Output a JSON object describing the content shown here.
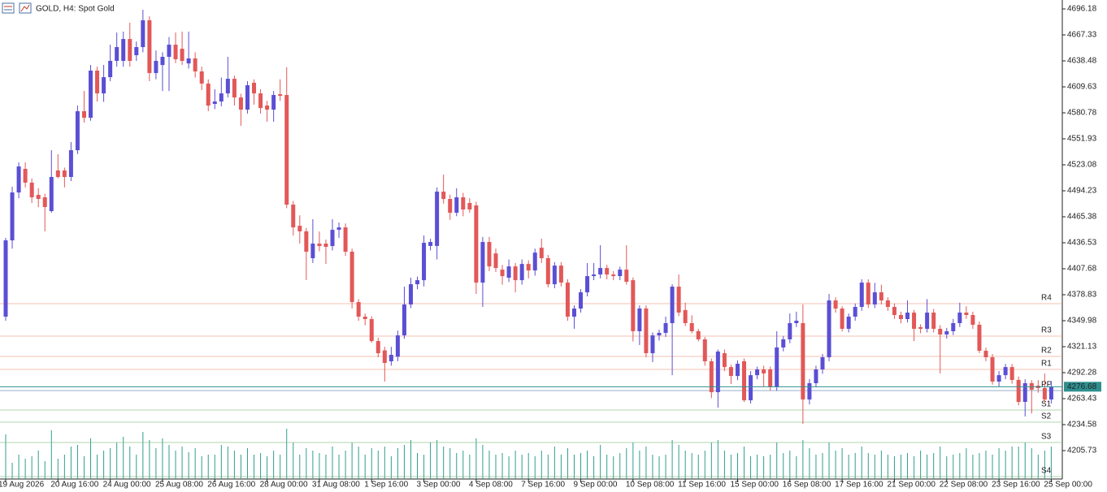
{
  "chart_data": {
    "type": "candlestick",
    "title": "GOLD, H4:  Spot Gold",
    "ylim": [
      4174.2,
      4706.1
    ],
    "yticks": [
      4696.18,
      4667.33,
      4638.48,
      4609.63,
      4580.78,
      4551.93,
      4523.08,
      4494.23,
      4465.38,
      4436.53,
      4407.68,
      4378.83,
      4349.98,
      4321.13,
      4292.28,
      4263.43,
      4234.58,
      4205.73
    ],
    "bull_color": "#5a4fd4",
    "bear_color": "#e25858",
    "volume_color": "#2f9e8f",
    "last_price": 4276.68,
    "last_price_color": "#2f8f8f",
    "levels": [
      {
        "name": "R4",
        "value": 4368.9,
        "color": "#ee9a7e"
      },
      {
        "name": "R3",
        "value": 4332.9,
        "color": "#ee9a7e"
      },
      {
        "name": "R2",
        "value": 4310.3,
        "color": "#ee9a7e"
      },
      {
        "name": "R1",
        "value": 4295.9,
        "color": "#ee9a7e"
      },
      {
        "name": "PP",
        "value": 4272.4,
        "color": "#6a8fb8"
      },
      {
        "name": "S1",
        "value": 4250.8,
        "color": "#7fb87f"
      },
      {
        "name": "S2",
        "value": 4237.3,
        "color": "#7fb87f"
      },
      {
        "name": "S3",
        "value": 4214.8,
        "color": "#7fb87f"
      },
      {
        "name": "S4",
        "value": 4176.9,
        "color": "#7fb87f"
      }
    ],
    "categories": [
      "19 Aug 2026",
      null,
      null,
      null,
      null,
      null,
      null,
      null,
      "20 Aug 16:00",
      null,
      null,
      null,
      null,
      null,
      null,
      null,
      "24 Aug 00:00",
      null,
      null,
      null,
      null,
      null,
      null,
      null,
      "25 Aug 08:00",
      null,
      null,
      null,
      null,
      null,
      null,
      null,
      "26 Aug 16:00",
      null,
      null,
      null,
      null,
      null,
      null,
      null,
      "28 Aug 00:00",
      null,
      null,
      null,
      null,
      null,
      null,
      null,
      "31 Aug 08:00",
      null,
      null,
      null,
      null,
      null,
      null,
      null,
      "1 Sep 16:00",
      null,
      null,
      null,
      null,
      null,
      null,
      null,
      "3 Sep 00:00",
      null,
      null,
      null,
      null,
      null,
      null,
      null,
      "4 Sep 08:00",
      null,
      null,
      null,
      null,
      null,
      null,
      null,
      "7 Sep 16:00",
      null,
      null,
      null,
      null,
      null,
      null,
      null,
      "9 Sep 00:00",
      null,
      null,
      null,
      null,
      null,
      null,
      null,
      "10 Sep 08:00",
      null,
      null,
      null,
      null,
      null,
      null,
      null,
      "11 Sep 16:00",
      null,
      null,
      null,
      null,
      null,
      null,
      null,
      "15 Sep 00:00",
      null,
      null,
      null,
      null,
      null,
      null,
      null,
      "16 Sep 08:00",
      null,
      null,
      null,
      null,
      null,
      null,
      null,
      "17 Sep 16:00",
      null,
      null,
      null,
      null,
      null,
      null,
      null,
      "21 Sep 00:00",
      null,
      null,
      null,
      null,
      null,
      null,
      null,
      "22 Sep 08:00",
      null,
      null,
      null,
      null,
      null,
      null,
      null,
      "23 Sep 16:00",
      null,
      null,
      null,
      null,
      null,
      null,
      null,
      "25 Sep 00:00"
    ],
    "candles": [
      [
        4354.5,
        4442.0,
        4350.0,
        4439.2
      ],
      [
        4439.2,
        4498.7,
        4430.0,
        4492.4
      ],
      [
        4492.4,
        4525.8,
        4486.0,
        4521.3
      ],
      [
        4518.6,
        4525.8,
        4498.0,
        4503.3
      ],
      [
        4503.3,
        4508.0,
        4480.7,
        4487.0
      ],
      [
        4489.7,
        4497.0,
        4476.0,
        4485.2
      ],
      [
        4487.0,
        4491.0,
        4449.2,
        4476.2
      ],
      [
        4471.7,
        4539.3,
        4469.9,
        4509.6
      ],
      [
        4516.8,
        4534.8,
        4508.0,
        4509.6
      ],
      [
        4516.8,
        4520.0,
        4498.0,
        4509.6
      ],
      [
        4509.6,
        4548.3,
        4505.0,
        4539.3
      ],
      [
        4539.3,
        4588.9,
        4535.0,
        4582.6
      ],
      [
        4582.6,
        4605.1,
        4570.0,
        4575.4
      ],
      [
        4575.4,
        4634.0,
        4572.0,
        4627.7
      ],
      [
        4627.7,
        4632.0,
        4593.4,
        4602.4
      ],
      [
        4602.4,
        4634.0,
        4593.0,
        4620.4
      ],
      [
        4620.4,
        4656.5,
        4616.0,
        4638.5
      ],
      [
        4638.5,
        4670.0,
        4632.0,
        4653.8
      ],
      [
        4638.5,
        4671.0,
        4632.0,
        4662.8
      ],
      [
        4662.8,
        4680.9,
        4632.0,
        4638.5
      ],
      [
        4644.8,
        4660.0,
        4638.5,
        4653.8
      ],
      [
        4653.8,
        4695.3,
        4648.0,
        4683.6
      ],
      [
        4683.6,
        4688.0,
        4616.0,
        4625.0
      ],
      [
        4625.0,
        4650.0,
        4618.0,
        4638.5
      ],
      [
        4633.9,
        4648.0,
        4605.0,
        4643.0
      ],
      [
        4643.0,
        4665.0,
        4605.0,
        4656.5
      ],
      [
        4656.5,
        4670.0,
        4636.0,
        4640.3
      ],
      [
        4652.0,
        4671.0,
        4634.0,
        4638.5
      ],
      [
        4635.7,
        4671.0,
        4630.0,
        4641.2
      ],
      [
        4641.2,
        4648.0,
        4620.0,
        4626.8
      ],
      [
        4626.8,
        4632.0,
        4606.0,
        4613.3
      ],
      [
        4613.3,
        4618.0,
        4582.6,
        4588.9
      ],
      [
        4590.7,
        4607.0,
        4585.0,
        4593.4
      ],
      [
        4593.4,
        4620.0,
        4588.0,
        4602.4
      ],
      [
        4602.4,
        4643.0,
        4598.0,
        4618.6
      ],
      [
        4618.6,
        4622.0,
        4588.9,
        4597.9
      ],
      [
        4597.9,
        4602.0,
        4566.4,
        4584.4
      ],
      [
        4584.4,
        4616.0,
        4580.0,
        4611.5
      ],
      [
        4614.2,
        4618.0,
        4590.0,
        4602.4
      ],
      [
        4602.4,
        4607.0,
        4579.9,
        4586.2
      ],
      [
        4588.9,
        4594.0,
        4570.9,
        4584.4
      ],
      [
        4584.4,
        4605.1,
        4570.9,
        4600.6
      ],
      [
        4601.5,
        4618.0,
        4594.0,
        4599.7
      ],
      [
        4600.6,
        4631.3,
        4475.0,
        4478.9
      ],
      [
        4478.9,
        4483.0,
        4444.6,
        4453.6
      ],
      [
        4455.4,
        4467.0,
        4435.6,
        4449.2
      ],
      [
        4449.2,
        4453.0,
        4395.1,
        4426.6
      ],
      [
        4419.4,
        4462.7,
        4414.0,
        4435.6
      ],
      [
        4435.6,
        4449.0,
        4427.0,
        4432.9
      ],
      [
        4435.6,
        4440.0,
        4413.0,
        4432.0
      ],
      [
        4432.9,
        4462.7,
        4428.0,
        4450.9
      ],
      [
        4450.9,
        4459.0,
        4442.0,
        4453.6
      ],
      [
        4453.6,
        4458.0,
        4422.0,
        4426.6
      ],
      [
        4426.6,
        4430.0,
        4363.5,
        4370.7
      ],
      [
        4370.7,
        4374.0,
        4349.9,
        4354.5
      ],
      [
        4354.5,
        4358.0,
        4345.0,
        4351.8
      ],
      [
        4351.8,
        4355.0,
        4325.6,
        4327.4
      ],
      [
        4327.4,
        4331.0,
        4309.4,
        4313.9
      ],
      [
        4317.0,
        4321.0,
        4282.4,
        4303.1
      ],
      [
        4304.9,
        4321.0,
        4300.0,
        4312.1
      ],
      [
        4310.0,
        4339.0,
        4305.0,
        4333.7
      ],
      [
        4333.7,
        4387.8,
        4330.0,
        4368.0
      ],
      [
        4368.0,
        4397.7,
        4364.0,
        4390.5
      ],
      [
        4390.5,
        4399.0,
        4385.0,
        4395.0
      ],
      [
        4395.0,
        4444.6,
        4388.0,
        4436.5
      ],
      [
        4433.0,
        4441.0,
        4428.0,
        4437.4
      ],
      [
        4433.0,
        4498.0,
        4418.0,
        4493.3
      ],
      [
        4493.3,
        4512.3,
        4480.0,
        4485.2
      ],
      [
        4485.2,
        4490.0,
        4462.0,
        4469.9
      ],
      [
        4469.9,
        4497.0,
        4466.0,
        4487.0
      ],
      [
        4487.0,
        4492.0,
        4466.0,
        4473.5
      ],
      [
        4480.7,
        4486.0,
        4470.0,
        4473.5
      ],
      [
        4478.0,
        4482.0,
        4379.7,
        4392.3
      ],
      [
        4392.3,
        4443.0,
        4365.3,
        4437.4
      ],
      [
        4437.4,
        4443.0,
        4405.0,
        4410.3
      ],
      [
        4424.7,
        4430.0,
        4404.0,
        4408.5
      ],
      [
        4406.7,
        4412.0,
        4390.0,
        4399.5
      ],
      [
        4397.7,
        4418.0,
        4393.0,
        4410.3
      ],
      [
        4410.3,
        4414.0,
        4381.5,
        4395.0
      ],
      [
        4395.0,
        4418.0,
        4390.0,
        4413.0
      ],
      [
        4413.0,
        4417.0,
        4397.0,
        4405.8
      ],
      [
        4405.8,
        4430.0,
        4400.0,
        4425.6
      ],
      [
        4431.0,
        4441.0,
        4414.0,
        4419.4
      ],
      [
        4419.4,
        4423.0,
        4387.0,
        4390.5
      ],
      [
        4390.5,
        4415.0,
        4386.0,
        4411.2
      ],
      [
        4411.2,
        4415.0,
        4388.0,
        4392.3
      ],
      [
        4392.3,
        4396.0,
        4349.9,
        4354.5
      ],
      [
        4354.5,
        4367.0,
        4341.0,
        4363.5
      ],
      [
        4363.5,
        4385.0,
        4359.0,
        4381.5
      ],
      [
        4381.5,
        4414.0,
        4377.0,
        4399.5
      ],
      [
        4399.5,
        4414.0,
        4395.0,
        4401.3
      ],
      [
        4401.3,
        4433.8,
        4397.0,
        4408.5
      ],
      [
        4408.5,
        4412.0,
        4396.0,
        4401.3
      ],
      [
        4401.3,
        4405.0,
        4395.0,
        4399.5
      ],
      [
        4399.5,
        4410.0,
        4395.0,
        4406.7
      ],
      [
        4406.7,
        4433.8,
        4390.0,
        4393.2
      ],
      [
        4395.0,
        4398.0,
        4327.0,
        4338.3
      ],
      [
        4338.3,
        4367.0,
        4323.0,
        4363.5
      ],
      [
        4363.5,
        4367.0,
        4309.4,
        4313.9
      ],
      [
        4313.9,
        4337.0,
        4304.0,
        4333.7
      ],
      [
        4333.7,
        4340.0,
        4328.0,
        4336.5
      ],
      [
        4336.5,
        4354.5,
        4332.0,
        4347.3
      ],
      [
        4347.3,
        4390.5,
        4289.5,
        4387.8
      ],
      [
        4387.8,
        4401.3,
        4355.0,
        4359.0
      ],
      [
        4361.8,
        4370.0,
        4344.0,
        4347.3
      ],
      [
        4347.3,
        4356.0,
        4336.0,
        4338.3
      ],
      [
        4338.3,
        4341.0,
        4327.0,
        4329.3
      ],
      [
        4329.3,
        4332.0,
        4300.0,
        4304.9
      ],
      [
        4304.9,
        4308.0,
        4264.0,
        4270.6
      ],
      [
        4270.6,
        4318.0,
        4253.5,
        4315.7
      ],
      [
        4313.9,
        4318.0,
        4294.0,
        4298.5
      ],
      [
        4298.5,
        4301.0,
        4279.6,
        4288.6
      ],
      [
        4288.6,
        4306.0,
        4284.0,
        4302.2
      ],
      [
        4304.9,
        4308.0,
        4259.8,
        4261.6
      ],
      [
        4261.6,
        4294.0,
        4258.0,
        4289.5
      ],
      [
        4289.5,
        4299.0,
        4285.0,
        4295.9
      ],
      [
        4295.9,
        4300.0,
        4277.0,
        4291.4
      ],
      [
        4295.9,
        4299.0,
        4272.0,
        4276.1
      ],
      [
        4276.1,
        4338.3,
        4272.0,
        4320.3
      ],
      [
        4320.3,
        4333.0,
        4316.0,
        4329.3
      ],
      [
        4329.3,
        4358.0,
        4325.0,
        4347.3
      ],
      [
        4347.3,
        4360.0,
        4343.0,
        4350.0
      ],
      [
        4347.3,
        4368.0,
        4235.5,
        4262.5
      ],
      [
        4262.5,
        4285.0,
        4257.0,
        4280.6
      ],
      [
        4280.6,
        4300.0,
        4276.0,
        4295.9
      ],
      [
        4295.9,
        4313.0,
        4291.0,
        4309.4
      ],
      [
        4309.4,
        4379.7,
        4305.0,
        4372.5
      ],
      [
        4372.5,
        4376.0,
        4359.0,
        4363.5
      ],
      [
        4363.5,
        4366.0,
        4338.0,
        4341.0
      ],
      [
        4341.0,
        4358.0,
        4337.0,
        4354.5
      ],
      [
        4354.5,
        4369.0,
        4350.0,
        4365.3
      ],
      [
        4365.3,
        4396.0,
        4361.0,
        4392.3
      ],
      [
        4392.3,
        4396.0,
        4364.0,
        4368.0
      ],
      [
        4368.0,
        4392.0,
        4364.0,
        4381.5
      ],
      [
        4381.5,
        4390.0,
        4368.0,
        4372.5
      ],
      [
        4372.5,
        4376.0,
        4361.0,
        4365.3
      ],
      [
        4365.3,
        4369.0,
        4352.0,
        4356.3
      ],
      [
        4356.3,
        4360.0,
        4347.0,
        4351.8
      ],
      [
        4351.8,
        4372.5,
        4348.0,
        4359.0
      ],
      [
        4359.0,
        4362.0,
        4327.4,
        4341.0
      ],
      [
        4342.8,
        4346.0,
        4336.0,
        4341.0
      ],
      [
        4341.0,
        4374.0,
        4337.0,
        4359.0
      ],
      [
        4359.0,
        4363.0,
        4337.0,
        4341.0
      ],
      [
        4341.0,
        4345.0,
        4291.4,
        4334.7
      ],
      [
        4334.7,
        4342.0,
        4330.0,
        4338.3
      ],
      [
        4338.3,
        4352.0,
        4334.0,
        4347.3
      ],
      [
        4347.3,
        4370.0,
        4343.0,
        4359.0
      ],
      [
        4359.0,
        4366.0,
        4352.0,
        4356.3
      ],
      [
        4356.3,
        4360.0,
        4341.0,
        4345.5
      ],
      [
        4345.5,
        4349.0,
        4313.9,
        4316.6
      ],
      [
        4316.6,
        4320.0,
        4305.0,
        4309.4
      ],
      [
        4309.4,
        4313.0,
        4279.0,
        4282.4
      ],
      [
        4282.4,
        4294.0,
        4277.0,
        4289.5
      ],
      [
        4289.5,
        4302.0,
        4285.0,
        4298.5
      ],
      [
        4298.5,
        4302.0,
        4280.0,
        4284.2
      ],
      [
        4284.2,
        4288.0,
        4256.0,
        4259.8
      ],
      [
        4259.8,
        4285.0,
        4243.6,
        4280.6
      ],
      [
        4280.6,
        4284.0,
        4247.0,
        4273.4
      ],
      [
        4277.9,
        4284.0,
        4270.0,
        4275.2
      ],
      [
        4275.2,
        4291.4,
        4259.0,
        4262.5
      ],
      [
        4262.5,
        4283.0,
        4258.0,
        4276.68
      ]
    ],
    "volumes": [
      55,
      20,
      30,
      25,
      28,
      35,
      22,
      60,
      25,
      30,
      40,
      42,
      28,
      50,
      30,
      35,
      38,
      45,
      52,
      40,
      30,
      58,
      48,
      38,
      50,
      42,
      35,
      40,
      33,
      38,
      28,
      30,
      30,
      42,
      40,
      35,
      30,
      38,
      30,
      32,
      28,
      35,
      30,
      62,
      45,
      30,
      38,
      35,
      32,
      30,
      40,
      30,
      35,
      45,
      40,
      30,
      38,
      35,
      40,
      28,
      38,
      42,
      48,
      32,
      30,
      45,
      48,
      40,
      38,
      32,
      35,
      30,
      50,
      42,
      35,
      30,
      32,
      28,
      35,
      30,
      32,
      28,
      35,
      30,
      40,
      30,
      38,
      30,
      32,
      35,
      28,
      42,
      30,
      28,
      32,
      38,
      45,
      35,
      40,
      30,
      28,
      30,
      48,
      42,
      35,
      32,
      30,
      35,
      45,
      48,
      35,
      30,
      32,
      40,
      28,
      30,
      28,
      30,
      45,
      32,
      35,
      28,
      48,
      38,
      30,
      32,
      45,
      35,
      38,
      30,
      32,
      40,
      32,
      30,
      35,
      30,
      28,
      30,
      32,
      28,
      35,
      30,
      32,
      40,
      28,
      30,
      32,
      38,
      30,
      32,
      35,
      30,
      38,
      35,
      40,
      40,
      45,
      38,
      30,
      35,
      40
    ]
  }
}
